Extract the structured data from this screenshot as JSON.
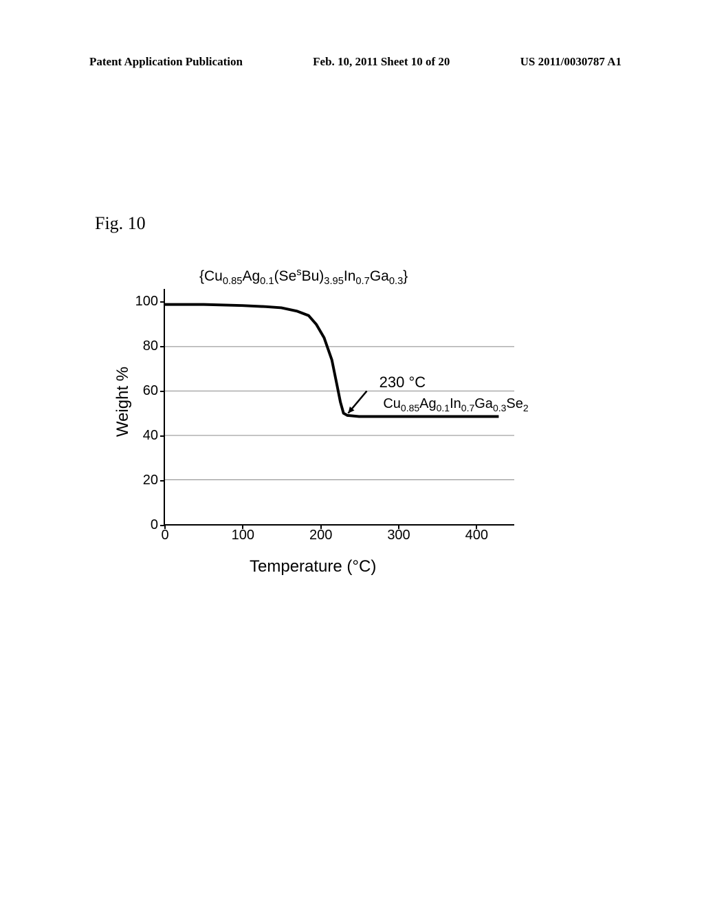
{
  "header": {
    "left": "Patent Application Publication",
    "center": "Feb. 10, 2011  Sheet 10 of 20",
    "right": "US 2011/0030787 A1"
  },
  "figure_label": "Fig. 10",
  "chart": {
    "type": "line",
    "title_plain": "{Cu0.85Ag0.1(SesBu)3.95In0.7Ga0.3}",
    "xlabel": "Temperature (°C)",
    "ylabel": "Weight %",
    "xlim": [
      0,
      450
    ],
    "ylim": [
      0,
      106
    ],
    "xtick_values": [
      0,
      100,
      200,
      300,
      400
    ],
    "xtick_labels": [
      "0",
      "100",
      "200",
      "300",
      "400"
    ],
    "ytick_values": [
      0,
      20,
      40,
      60,
      80,
      100
    ],
    "ytick_labels": [
      "0",
      "20",
      "40",
      "60",
      "80",
      "100"
    ],
    "gridline_y_values": [
      20,
      40,
      60,
      80
    ],
    "background_color": "#ffffff",
    "grid_color": "#888888",
    "axis_color": "#000000",
    "curve_color": "#000000",
    "curve_width": 4,
    "curve_points": [
      [
        0,
        99
      ],
      [
        50,
        99
      ],
      [
        100,
        98.5
      ],
      [
        130,
        98
      ],
      [
        150,
        97.5
      ],
      [
        170,
        96
      ],
      [
        185,
        94
      ],
      [
        195,
        90
      ],
      [
        205,
        84
      ],
      [
        215,
        74
      ],
      [
        222,
        62
      ],
      [
        226,
        55
      ],
      [
        230,
        50
      ],
      [
        235,
        49
      ],
      [
        250,
        48.5
      ],
      [
        300,
        48.5
      ],
      [
        350,
        48.5
      ],
      [
        400,
        48.5
      ],
      [
        430,
        48.5
      ]
    ],
    "annotation_temp": "230 °C",
    "annotation_product_plain": "Cu0.85Ag0.1In0.7Ga0.3Se2",
    "arrow": {
      "from_x": 260,
      "from_y": 60,
      "to_x": 236,
      "to_y": 50,
      "color": "#000000",
      "width": 2.5
    },
    "title_fontsize": 21,
    "label_fontsize": 24,
    "tick_fontsize": 20,
    "annotation_fontsize": 22
  }
}
